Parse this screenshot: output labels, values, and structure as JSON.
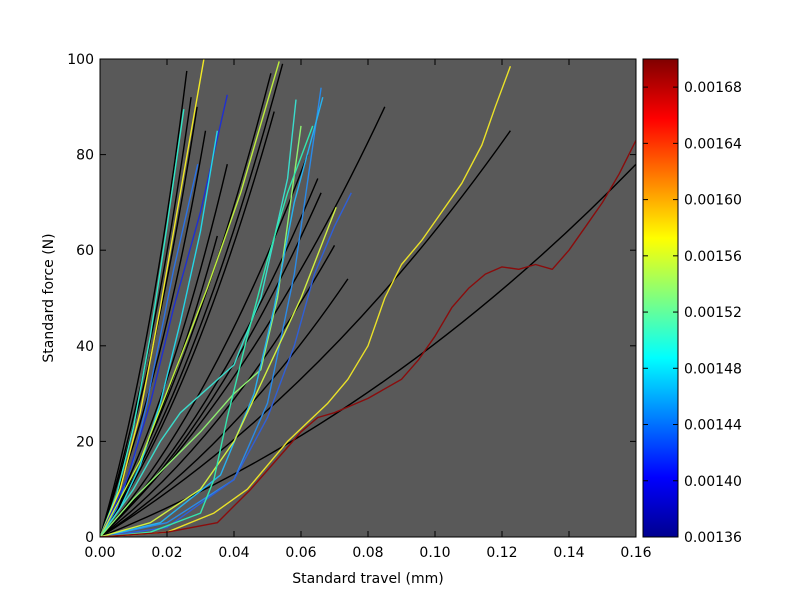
{
  "chart_data": {
    "type": "line",
    "title": "",
    "xlabel": "Standard travel (mm)",
    "ylabel": "Standard force (N)",
    "xlim": [
      0.0,
      0.16
    ],
    "ylim": [
      0,
      100
    ],
    "x_ticks": [
      "0.00",
      "0.02",
      "0.04",
      "0.06",
      "0.08",
      "0.10",
      "0.12",
      "0.14",
      "0.16"
    ],
    "y_ticks": [
      "0",
      "20",
      "40",
      "60",
      "80",
      "100"
    ],
    "plot_background": "#595959",
    "grid": false,
    "colorbar": {
      "min": 0.00136,
      "max": 0.0017,
      "ticks": [
        "0.00136",
        "0.00140",
        "0.00144",
        "0.00148",
        "0.00152",
        "0.00156",
        "0.00160",
        "0.00164",
        "0.00168"
      ],
      "colormap": "jet"
    },
    "series": [
      {
        "color": "#000000",
        "x": [
          0,
          0.0148,
          0.0259
        ],
        "y": [
          0,
          35,
          97.5
        ]
      },
      {
        "color": "#000000",
        "x": [
          0,
          0.0155,
          0.0272
        ],
        "y": [
          0,
          33,
          92
        ]
      },
      {
        "color": "#000000",
        "x": [
          0,
          0.0165,
          0.029
        ],
        "y": [
          0,
          33,
          90
        ]
      },
      {
        "color": "#000000",
        "x": [
          0,
          0.018,
          0.0315
        ],
        "y": [
          0,
          30,
          85
        ]
      },
      {
        "color": "#000000",
        "x": [
          0,
          0.0205,
          0.038
        ],
        "y": [
          0,
          26,
          78
        ]
      },
      {
        "color": "#000000",
        "x": [
          0,
          0.019,
          0.035
        ],
        "y": [
          0,
          22,
          63
        ]
      },
      {
        "color": "#000000",
        "x": [
          0,
          0.027,
          0.051
        ],
        "y": [
          0,
          32,
          97
        ]
      },
      {
        "color": "#000000",
        "x": [
          0,
          0.028,
          0.052
        ],
        "y": [
          0,
          29,
          89
        ]
      },
      {
        "color": "#000000",
        "x": [
          0,
          0.029,
          0.0545
        ],
        "y": [
          0,
          32,
          99
        ]
      },
      {
        "color": "#000000",
        "x": [
          0,
          0.033,
          0.062
        ],
        "y": [
          0,
          26,
          80
        ]
      },
      {
        "color": "#000000",
        "x": [
          0,
          0.0345,
          0.065
        ],
        "y": [
          0,
          24,
          75
        ]
      },
      {
        "color": "#000000",
        "x": [
          0,
          0.035,
          0.066
        ],
        "y": [
          0,
          23,
          72
        ]
      },
      {
        "color": "#000000",
        "x": [
          0,
          0.037,
          0.07
        ],
        "y": [
          0,
          20,
          61
        ]
      },
      {
        "color": "#000000",
        "x": [
          0,
          0.039,
          0.074
        ],
        "y": [
          0,
          18,
          54
        ]
      },
      {
        "color": "#000000",
        "x": [
          0,
          0.045,
          0.085
        ],
        "y": [
          0,
          30,
          90
        ]
      },
      {
        "color": "#000000",
        "x": [
          0,
          0.065,
          0.1225
        ],
        "y": [
          0,
          28,
          85
        ]
      },
      {
        "color": "#000000",
        "x": [
          0,
          0.085,
          0.16
        ],
        "y": [
          0,
          24,
          78
        ]
      },
      {
        "color": "#2ee8c8",
        "x": [
          0,
          0.005,
          0.01,
          0.015,
          0.02,
          0.025
        ],
        "y": [
          0,
          9,
          23,
          42,
          65,
          89.5
        ]
      },
      {
        "color": "#f2ea25",
        "x": [
          0,
          0.006,
          0.012,
          0.018,
          0.024,
          0.031
        ],
        "y": [
          0,
          10,
          26,
          48,
          72,
          100
        ]
      },
      {
        "color": "#2a72e8",
        "x": [
          0,
          0.005,
          0.01,
          0.014,
          0.018,
          0.022,
          0.0292
        ],
        "y": [
          0,
          6,
          16,
          28,
          42,
          56,
          78
        ]
      },
      {
        "color": "#1f2fd0",
        "x": [
          0,
          0.008,
          0.015,
          0.022,
          0.03,
          0.038
        ],
        "y": [
          0,
          12,
          28,
          48,
          68,
          92.5
        ]
      },
      {
        "color": "#24d6e6",
        "x": [
          0,
          0.006,
          0.012,
          0.018,
          0.024,
          0.03,
          0.035
        ],
        "y": [
          0,
          6,
          15,
          28,
          45,
          64,
          85
        ]
      },
      {
        "color": "#bff03c",
        "x": [
          0,
          0.012,
          0.022,
          0.032,
          0.042,
          0.0535
        ],
        "y": [
          0,
          16,
          34,
          52,
          72,
          99.5
        ]
      },
      {
        "color": "#3adccc",
        "x": [
          0,
          0.01,
          0.014,
          0.018,
          0.024,
          0.032,
          0.04,
          0.048,
          0.056,
          0.0585
        ],
        "y": [
          0,
          10,
          15,
          20,
          26,
          31,
          36,
          50,
          75,
          91.5
        ]
      },
      {
        "color": "#8ef070",
        "x": [
          0,
          0.01,
          0.02,
          0.03,
          0.04,
          0.048,
          0.053,
          0.06
        ],
        "y": [
          0,
          8,
          15,
          22,
          30,
          35,
          50,
          86
        ]
      },
      {
        "color": "#2a8ae8",
        "x": [
          0,
          0.02,
          0.04,
          0.05,
          0.058,
          0.066
        ],
        "y": [
          0,
          3,
          12,
          28,
          55,
          94
        ]
      },
      {
        "color": "#26b2f0",
        "x": [
          0,
          0.018,
          0.036,
          0.046,
          0.052,
          0.058,
          0.0665
        ],
        "y": [
          0,
          3,
          13,
          30,
          48,
          70,
          92
        ]
      },
      {
        "color": "#2f5fd8",
        "x": [
          0,
          0.02,
          0.04,
          0.05,
          0.058,
          0.064,
          0.07,
          0.075
        ],
        "y": [
          0,
          2,
          12,
          25,
          40,
          55,
          65,
          72
        ]
      },
      {
        "color": "#d0f040",
        "x": [
          0,
          0.015,
          0.03,
          0.04,
          0.05,
          0.06,
          0.0705
        ],
        "y": [
          0,
          3,
          10,
          20,
          35,
          50,
          69
        ]
      },
      {
        "color": "#33e6ae",
        "x": [
          0,
          0.015,
          0.03,
          0.034,
          0.038,
          0.044,
          0.05,
          0.056,
          0.0635
        ],
        "y": [
          0,
          1,
          5,
          12,
          25,
          42,
          58,
          72,
          86
        ]
      },
      {
        "color": "#ebe228",
        "x": [
          0,
          0.02,
          0.034,
          0.044,
          0.05,
          0.056,
          0.062,
          0.068,
          0.074,
          0.08,
          0.085,
          0.09,
          0.096,
          0.102,
          0.108,
          0.114,
          0.118,
          0.1225
        ],
        "y": [
          0,
          1,
          5,
          10,
          15,
          20,
          24,
          28,
          33,
          40,
          50,
          57,
          62,
          68,
          74,
          82,
          90,
          98.5
        ]
      },
      {
        "color": "#8a0c0c",
        "x": [
          0,
          0.02,
          0.035,
          0.045,
          0.055,
          0.06,
          0.065,
          0.07,
          0.075,
          0.08,
          0.085,
          0.09,
          0.095,
          0.1,
          0.105,
          0.11,
          0.115,
          0.12,
          0.125,
          0.13,
          0.135,
          0.14,
          0.145,
          0.15,
          0.155,
          0.16
        ],
        "y": [
          0,
          1,
          3,
          10,
          18,
          22,
          25,
          26,
          27.5,
          29,
          31,
          33,
          37,
          42,
          48,
          52,
          55,
          56.5,
          56,
          57,
          56,
          60,
          65,
          70,
          76,
          83
        ]
      }
    ]
  }
}
